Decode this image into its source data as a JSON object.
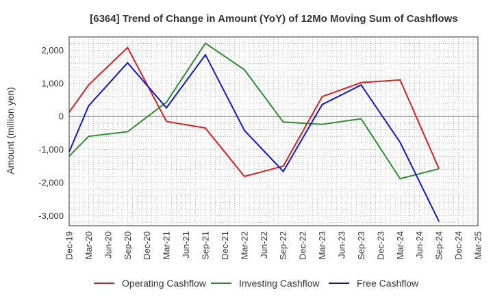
{
  "chart_data": {
    "type": "line",
    "title": "[6364]  Trend of Change in Amount (YoY) of 12Mo Moving Sum of Cashflows",
    "xlabel": "",
    "ylabel": "Amount (million yen)",
    "categories": [
      "Dec-19",
      "Mar-20",
      "Jun-20",
      "Sep-20",
      "Dec-20",
      "Mar-21",
      "Jun-21",
      "Sep-21",
      "Dec-21",
      "Mar-22",
      "Jun-22",
      "Sep-22",
      "Dec-22",
      "Mar-23",
      "Jun-23",
      "Sep-23",
      "Dec-23",
      "Mar-24",
      "Jun-24",
      "Sep-24",
      "Dec-24",
      "Mar-25"
    ],
    "ylim": [
      -3300,
      2400
    ],
    "yticks": [
      2000,
      1000,
      0,
      -1000,
      -2000,
      -3000
    ],
    "ytick_labels": [
      "2,000",
      "1,000",
      "0",
      "-1,000",
      "-2,000",
      "-3,000"
    ],
    "grid": true,
    "legend_position": "bottom",
    "series": [
      {
        "name": "Operating Cashflow",
        "color": "#e31a1c",
        "points": [
          [
            0,
            130
          ],
          [
            1,
            950
          ],
          [
            3,
            2080
          ],
          [
            5,
            -150
          ],
          [
            7,
            -350
          ],
          [
            9,
            -1810
          ],
          [
            11,
            -1500
          ],
          [
            13,
            600
          ],
          [
            15,
            1020
          ],
          [
            17,
            1100
          ],
          [
            19,
            -1580
          ]
        ]
      },
      {
        "name": "Investing Cashflow",
        "color": "#2e8b2e",
        "points": [
          [
            0,
            -1200
          ],
          [
            1,
            -600
          ],
          [
            3,
            -460
          ],
          [
            5,
            430
          ],
          [
            7,
            2210
          ],
          [
            9,
            1410
          ],
          [
            11,
            -170
          ],
          [
            13,
            -240
          ],
          [
            15,
            -70
          ],
          [
            17,
            -1880
          ],
          [
            19,
            -1580
          ]
        ]
      },
      {
        "name": "Free Cashflow",
        "color": "#1010e0",
        "points": [
          [
            0,
            -1070
          ],
          [
            1,
            320
          ],
          [
            3,
            1620
          ],
          [
            5,
            260
          ],
          [
            7,
            1860
          ],
          [
            9,
            -420
          ],
          [
            11,
            -1660
          ],
          [
            13,
            360
          ],
          [
            15,
            950
          ],
          [
            17,
            -780
          ],
          [
            19,
            -3170
          ]
        ]
      }
    ]
  }
}
